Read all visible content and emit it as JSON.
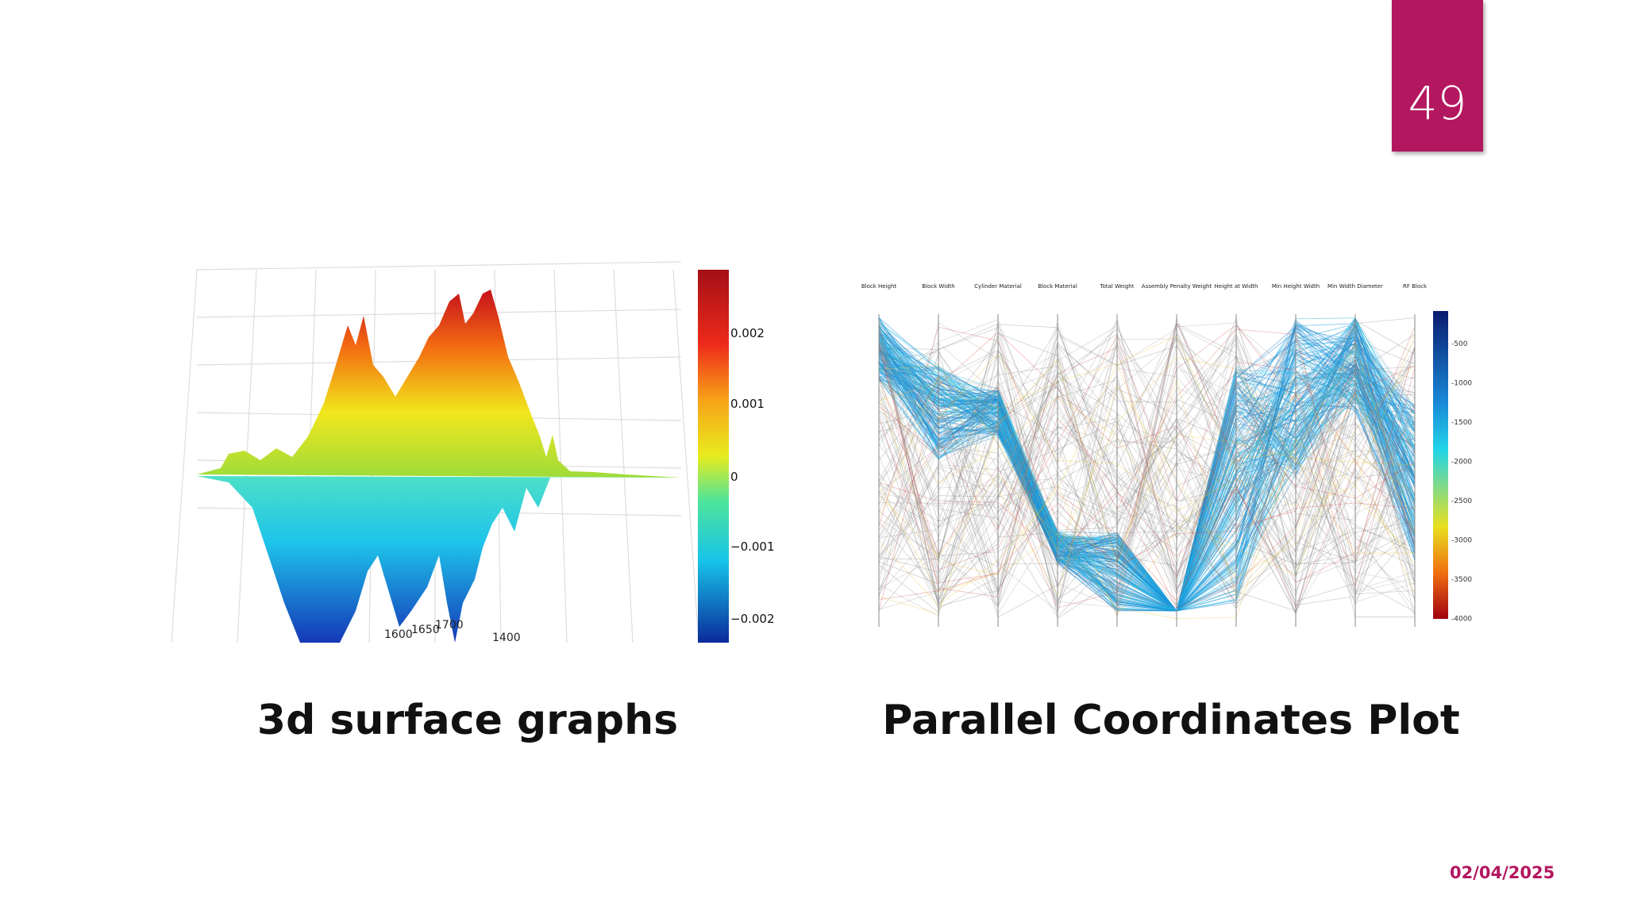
{
  "slide_number": "49",
  "surface": {
    "caption": "3d surface graphs",
    "colorbar_labels": [
      "0.002",
      "0.001",
      "0",
      "−0.001",
      "−0.002"
    ],
    "axis_labels": [
      "1600",
      "1650",
      "1700",
      "1400"
    ]
  },
  "parallel": {
    "caption": "Parallel Coordinates Plot",
    "axes": [
      "Block Height",
      "Block Width",
      "Cylinder Material",
      "Block Material",
      "Total Weight",
      "Assembly Penalty Weight",
      "Height at Width",
      "Min Height Width",
      "Min Width Diameter",
      "RF Block"
    ],
    "colorbar_labels": [
      "-500",
      "-1000",
      "-1500",
      "-2000",
      "-2500",
      "-3000",
      "-3500",
      "-4000"
    ]
  },
  "date": "02/04/2025"
}
